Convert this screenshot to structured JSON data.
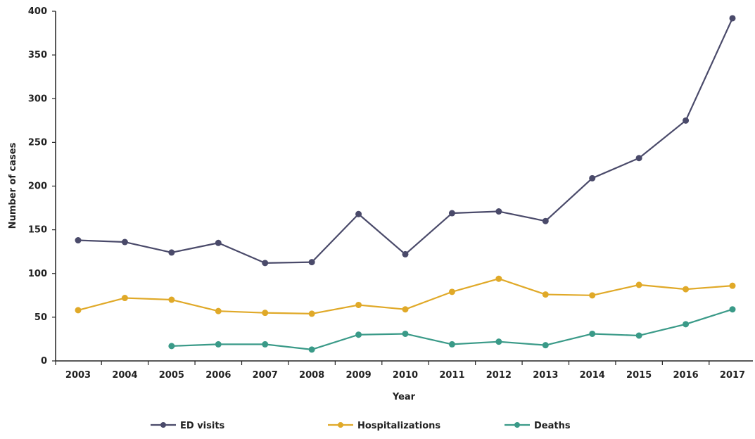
{
  "chart_data": {
    "type": "line",
    "title": "",
    "xlabel": "Year",
    "ylabel": "Number of cases",
    "ylim": [
      0,
      400
    ],
    "yticks": [
      0,
      50,
      100,
      150,
      200,
      250,
      300,
      350,
      400
    ],
    "categories": [
      "2003",
      "2004",
      "2005",
      "2006",
      "2007",
      "2008",
      "2009",
      "2010",
      "2011",
      "2012",
      "2013",
      "2014",
      "2015",
      "2016",
      "2017"
    ],
    "grid": false,
    "legend_position": "bottom",
    "series": [
      {
        "name": "ED visits",
        "color": "#4a4a6a",
        "values": [
          138,
          136,
          124,
          135,
          112,
          113,
          168,
          122,
          169,
          171,
          160,
          209,
          232,
          275,
          392
        ]
      },
      {
        "name": "Hospitalizations",
        "color": "#e0a928",
        "values": [
          58,
          72,
          70,
          57,
          55,
          54,
          64,
          59,
          79,
          94,
          76,
          75,
          87,
          82,
          86
        ]
      },
      {
        "name": "Deaths",
        "color": "#3a9a88",
        "values": [
          null,
          null,
          17,
          19,
          19,
          13,
          30,
          31,
          19,
          22,
          18,
          31,
          29,
          42,
          59
        ]
      }
    ]
  }
}
